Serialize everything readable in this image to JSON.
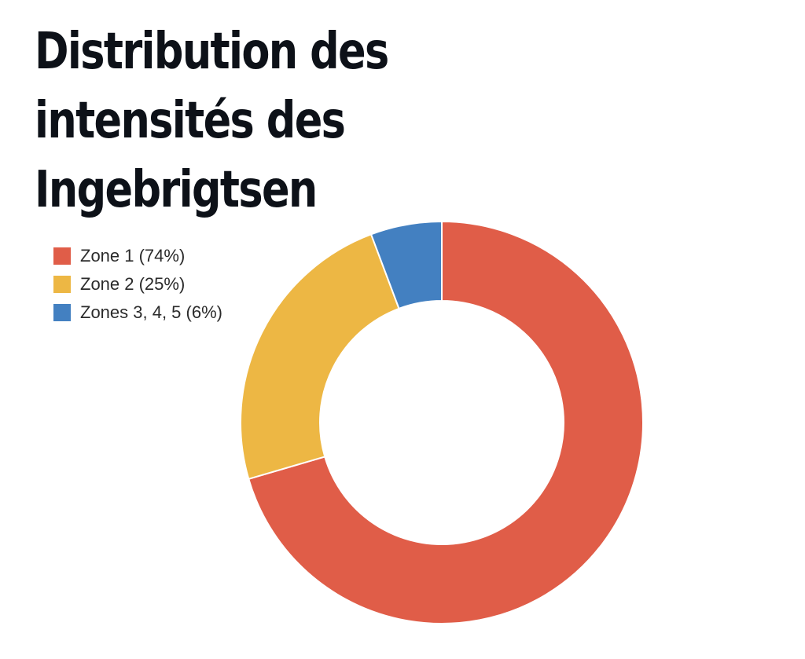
{
  "chart_data": {
    "type": "pie",
    "title": "Distribution des intensités des Ingebrigtsen",
    "donut": true,
    "legend_position": "top-left",
    "categories": [
      "Zone 1 (74%)",
      "Zone 2 (25%)",
      "Zones 3, 4, 5 (6%)"
    ],
    "values": [
      74,
      25,
      6
    ],
    "colors": [
      "#e05d48",
      "#edb744",
      "#4380c1"
    ]
  }
}
